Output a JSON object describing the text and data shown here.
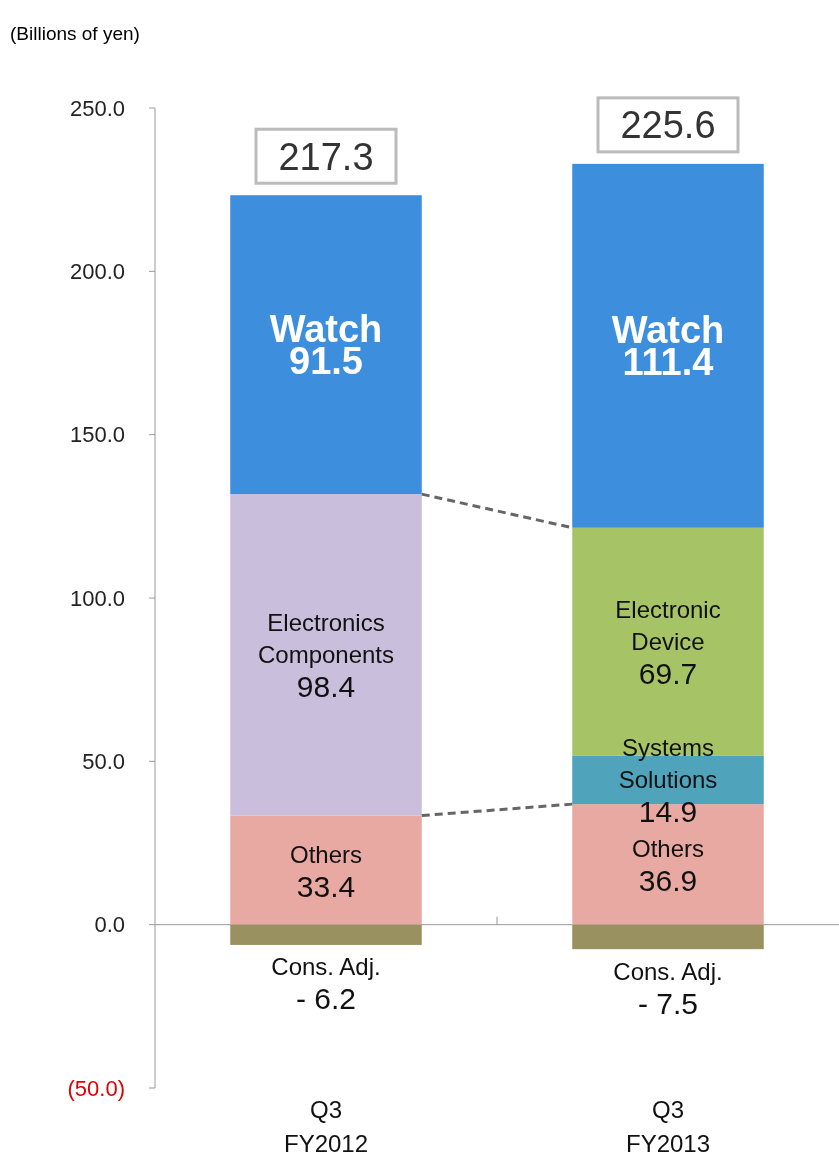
{
  "chart_data": {
    "type": "bar",
    "stacked": true,
    "ylabel": "(Billions of yen)",
    "categories": [
      "Q3\nFY2012",
      "Q3\nFY2013"
    ],
    "ylim": [
      -50,
      250
    ],
    "yticks": [
      {
        "value": -50,
        "label": "(50.0)"
      },
      {
        "value": 0,
        "label": "0.0"
      },
      {
        "value": 50,
        "label": "50.0"
      },
      {
        "value": 100,
        "label": "100.0"
      },
      {
        "value": 150,
        "label": "150.0"
      },
      {
        "value": 200,
        "label": "200.0"
      },
      {
        "value": 250,
        "label": "250.0"
      }
    ],
    "series": [
      {
        "name": "Others",
        "color": "#e8a9a3",
        "values": [
          33.4,
          36.9
        ]
      },
      {
        "name": "Systems Solutions",
        "color": "#4fa3bb",
        "values": [
          null,
          14.9
        ]
      },
      {
        "name": "Electronics Components",
        "color": "#c9bfdc",
        "values": [
          98.4,
          null
        ]
      },
      {
        "name": "Electronic Device",
        "color": "#a6c466",
        "values": [
          null,
          69.7
        ]
      },
      {
        "name": "Watch",
        "color": "#3d8fde",
        "values": [
          91.5,
          111.4
        ]
      },
      {
        "name": "Cons. Adj.",
        "color": "#9a9160",
        "values": [
          -6.2,
          -7.5
        ],
        "value_labels": [
          "-  6.2",
          "- 7.5"
        ]
      }
    ],
    "data_labels": true,
    "totals": [
      "217.3",
      "225.6"
    ]
  }
}
